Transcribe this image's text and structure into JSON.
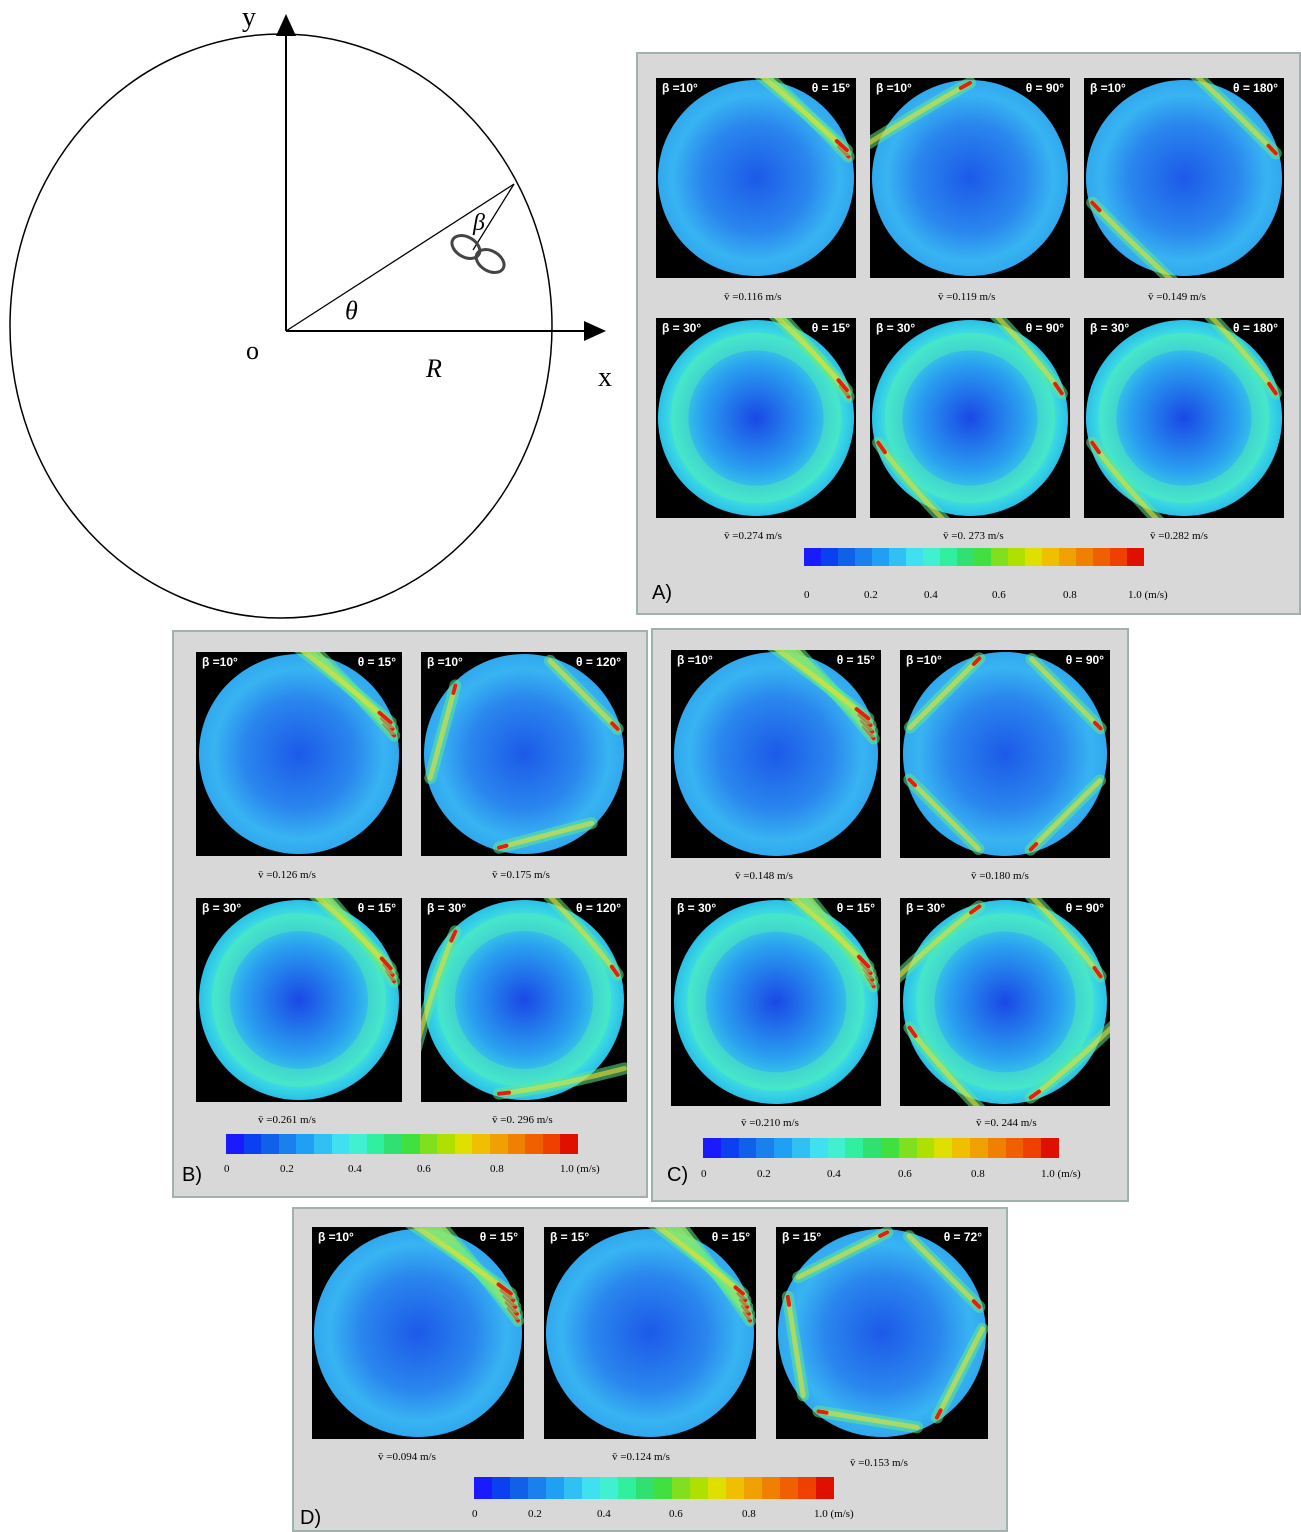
{
  "schematic": {
    "y_label": "y",
    "x_label": "x",
    "origin_label": "o",
    "radius_label": "R",
    "theta_label": "θ",
    "beta_label": "β"
  },
  "colorbar": {
    "colors": [
      "#1a1aff",
      "#0a40f0",
      "#1060ea",
      "#1a80ee",
      "#20a0f4",
      "#30c0f4",
      "#40e0f0",
      "#40f0d0",
      "#30f0a0",
      "#30e070",
      "#40e040",
      "#80e020",
      "#b0e000",
      "#e0e000",
      "#f0c000",
      "#f0a000",
      "#f08000",
      "#f06000",
      "#f04000",
      "#e01000"
    ],
    "ticks": [
      "0",
      "0.2",
      "0.4",
      "0.6",
      "0.8",
      "1.0 (m/s)"
    ]
  },
  "panels": [
    {
      "label": "A)",
      "tiles": [
        {
          "beta": "β =10°",
          "theta": "θ = 15°",
          "velocity": "v̄ =0.116 m/s"
        },
        {
          "beta": "β =10°",
          "theta": "θ = 90°",
          "velocity": "v̄ =0.119 m/s"
        },
        {
          "beta": "β =10°",
          "theta": "θ = 180°",
          "velocity": "v̄ =0.149 m/s"
        },
        {
          "beta": "β = 30°",
          "theta": "θ = 15°",
          "velocity": "v̄ =0.274 m/s"
        },
        {
          "beta": "β = 30°",
          "theta": "θ = 90°",
          "velocity": "v̄ =0. 273 m/s"
        },
        {
          "beta": "β = 30°",
          "theta": "θ = 180°",
          "velocity": "v̄ =0.282 m/s"
        }
      ]
    },
    {
      "label": "B)",
      "tiles": [
        {
          "beta": "β =10°",
          "theta": "θ = 15°",
          "velocity": "v̄ =0.126 m/s"
        },
        {
          "beta": "β =10°",
          "theta": "θ = 120°",
          "velocity": "v̄ =0.175 m/s"
        },
        {
          "beta": "β = 30°",
          "theta": "θ = 15°",
          "velocity": "v̄ =0.261 m/s"
        },
        {
          "beta": "β = 30°",
          "theta": "θ = 120°",
          "velocity": "v̄ =0. 296 m/s"
        }
      ]
    },
    {
      "label": "C)",
      "tiles": [
        {
          "beta": "β =10°",
          "theta": "θ = 15°",
          "velocity": "v̄ =0.148 m/s"
        },
        {
          "beta": "β =10°",
          "theta": "θ = 90°",
          "velocity": "v̄ =0.180 m/s"
        },
        {
          "beta": "β = 30°",
          "theta": "θ = 15°",
          "velocity": "v̄ =0.210 m/s"
        },
        {
          "beta": "β = 30°",
          "theta": "θ = 90°",
          "velocity": "v̄ =0. 244 m/s"
        }
      ]
    },
    {
      "label": "D)",
      "tiles": [
        {
          "beta": "β =10°",
          "theta": "θ = 15°",
          "velocity": "v̄ =0.094 m/s"
        },
        {
          "beta": "β = 15°",
          "theta": "θ = 15°",
          "velocity": "v̄ =0.124 m/s"
        },
        {
          "beta": "β = 15°",
          "theta": "θ = 72°",
          "velocity": "v̄ =0.153 m/s"
        }
      ]
    }
  ]
}
